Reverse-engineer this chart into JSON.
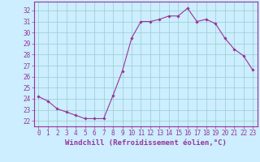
{
  "x": [
    0,
    1,
    2,
    3,
    4,
    5,
    6,
    7,
    8,
    9,
    10,
    11,
    12,
    13,
    14,
    15,
    16,
    17,
    18,
    19,
    20,
    21,
    22,
    23
  ],
  "y": [
    24.2,
    23.8,
    23.1,
    22.8,
    22.5,
    22.2,
    22.2,
    22.2,
    24.3,
    26.5,
    29.5,
    31.0,
    31.0,
    31.2,
    31.5,
    31.5,
    32.2,
    31.0,
    31.2,
    30.8,
    29.5,
    28.5,
    27.9,
    26.6
  ],
  "line_color": "#993399",
  "marker_color": "#993399",
  "bg_color": "#cceeff",
  "grid_color": "#99cccc",
  "xlabel": "Windchill (Refroidissement éolien,°C)",
  "xlabel_color": "#993399",
  "tick_color": "#993399",
  "xlim": [
    -0.5,
    23.5
  ],
  "ylim": [
    21.5,
    32.8
  ],
  "yticks": [
    22,
    23,
    24,
    25,
    26,
    27,
    28,
    29,
    30,
    31,
    32
  ],
  "xtick_labels": [
    "0",
    "1",
    "2",
    "3",
    "4",
    "5",
    "6",
    "7",
    "8",
    "9",
    "10",
    "11",
    "12",
    "13",
    "14",
    "15",
    "16",
    "17",
    "18",
    "19",
    "20",
    "21",
    "22",
    "23"
  ],
  "tick_fontsize": 5.5,
  "label_fontsize": 6.5
}
